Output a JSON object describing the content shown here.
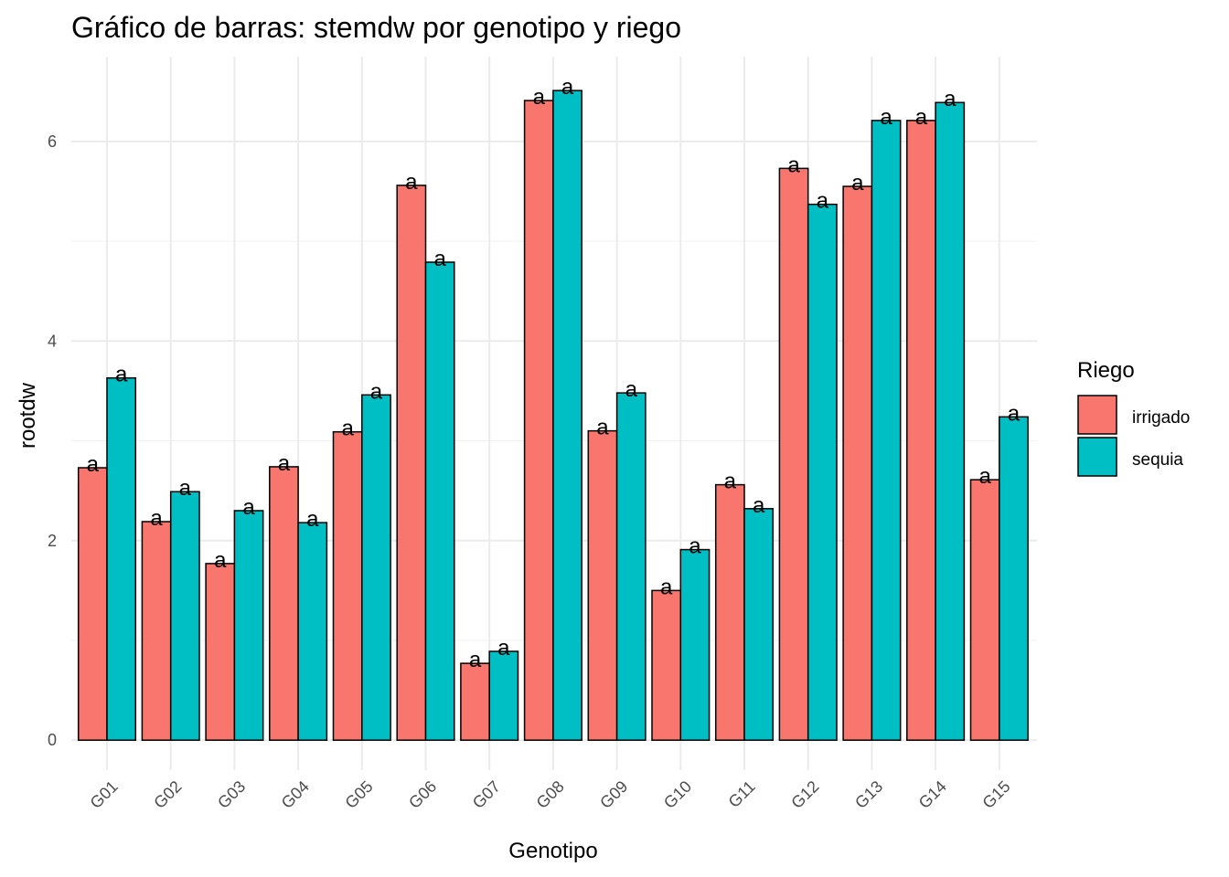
{
  "chart_data": {
    "type": "bar",
    "title": "Gráfico de barras: stemdw por genotipo y riego",
    "xlabel": "Genotipo",
    "ylabel": "rootdw",
    "categories": [
      "G01",
      "G02",
      "G03",
      "G04",
      "G05",
      "G06",
      "G07",
      "G08",
      "G09",
      "G10",
      "G11",
      "G12",
      "G13",
      "G14",
      "G15"
    ],
    "series": [
      {
        "name": "irrigado",
        "color": "#F8766D",
        "values": [
          2.73,
          2.19,
          1.77,
          2.74,
          3.09,
          5.56,
          0.77,
          6.41,
          3.1,
          1.5,
          2.56,
          5.73,
          5.55,
          6.21,
          2.61
        ],
        "labels": [
          "a",
          "a",
          "a",
          "a",
          "a",
          "a",
          "a",
          "a",
          "a",
          "a",
          "a",
          "a",
          "a",
          "a",
          "a"
        ]
      },
      {
        "name": "sequia",
        "color": "#00BFC4",
        "values": [
          3.63,
          2.49,
          2.3,
          2.18,
          3.46,
          4.79,
          0.89,
          6.51,
          3.48,
          1.91,
          2.32,
          5.37,
          6.21,
          6.39,
          3.24
        ],
        "labels": [
          "a",
          "a",
          "a",
          "a",
          "a",
          "a",
          "a",
          "a",
          "a",
          "a",
          "a",
          "a",
          "a",
          "a",
          "a"
        ]
      }
    ],
    "yticks": [
      0,
      2,
      4,
      6
    ],
    "ylim": [
      -0.3,
      6.85
    ],
    "grid": true,
    "legend": {
      "title": "Riego",
      "position": "right"
    }
  }
}
